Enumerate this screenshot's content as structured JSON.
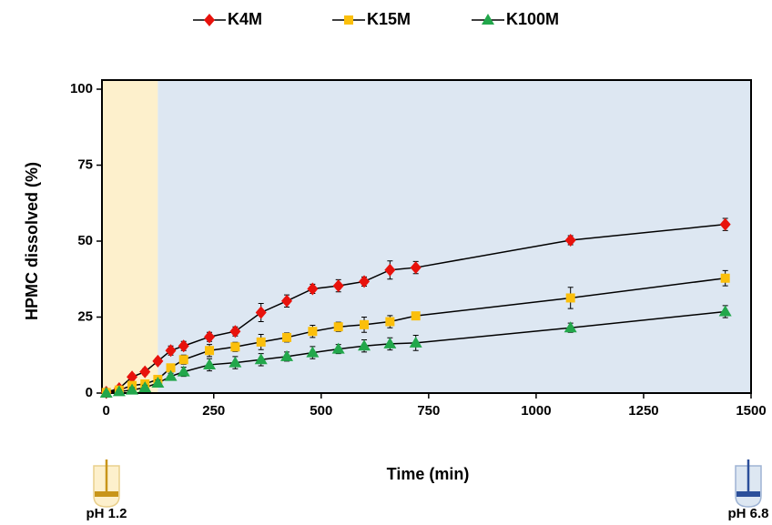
{
  "chart_data": {
    "type": "line",
    "x_label": "Time (min)",
    "y_label": "HPMC dissolved (%)",
    "x": [
      0,
      30,
      60,
      90,
      120,
      150,
      180,
      240,
      300,
      360,
      420,
      480,
      540,
      600,
      660,
      720,
      1080,
      1440
    ],
    "series": [
      {
        "name": "K4M",
        "color": "#e8120c",
        "marker": "diamond",
        "values": [
          0.3,
          1.5,
          5.3,
          7,
          10.5,
          14,
          15.5,
          18.5,
          20.3,
          26.5,
          30.3,
          34.3,
          35.3,
          36.7,
          40.5,
          41.3,
          50.3,
          55.5
        ],
        "errors": [
          0.5,
          0.8,
          1,
          1,
          1,
          1.5,
          1.5,
          1.5,
          1.5,
          3,
          2,
          1.5,
          2,
          1.5,
          3,
          2,
          1.5,
          2
        ]
      },
      {
        "name": "K15M",
        "color": "#fbbf0b",
        "marker": "square",
        "values": [
          0.2,
          1,
          2.5,
          3,
          4.5,
          8.3,
          11,
          14,
          15.2,
          16.8,
          18.3,
          20.3,
          21.8,
          22.5,
          23.5,
          25.4,
          31.3,
          37.8
        ],
        "errors": [
          0.5,
          0.5,
          0.8,
          0.8,
          1,
          1,
          1.5,
          2,
          1.5,
          2.5,
          1.5,
          2,
          1.5,
          2.5,
          2,
          1,
          3.5,
          2.5
        ]
      },
      {
        "name": "K100M",
        "color": "#22a74b",
        "marker": "triangle",
        "values": [
          0,
          0.5,
          1,
          1.8,
          3.3,
          5.5,
          7,
          9.3,
          10,
          11,
          12,
          13.3,
          14.5,
          15.5,
          16.2,
          16.5,
          21.5,
          26.8
        ],
        "errors": [
          0.5,
          0.5,
          0.8,
          0.8,
          1,
          1,
          1.5,
          2,
          2,
          2,
          1.5,
          2,
          1.5,
          2,
          2,
          2.5,
          1.5,
          2
        ]
      }
    ],
    "xlim": [
      -10,
      1500
    ],
    "xticks": [
      0,
      250,
      500,
      750,
      1000,
      1250,
      1500
    ],
    "ylim": [
      0,
      103
    ],
    "yticks": [
      0,
      25,
      50,
      75,
      100
    ],
    "shaded_regions": [
      {
        "x0": -10,
        "x1": 120,
        "color": "#fdf0cc"
      },
      {
        "x0": 120,
        "x1": 1500,
        "color": "#dde7f2"
      }
    ],
    "phase_labels": [
      "pH 1.2",
      "pH 6.8"
    ],
    "legend": "top"
  }
}
